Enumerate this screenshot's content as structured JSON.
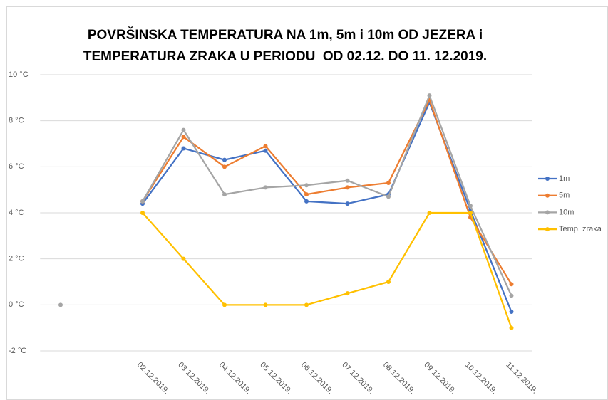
{
  "chart_data": {
    "type": "line",
    "title": [
      "POVRŠINSKA TEMPERATURA NA 1m, 5m i 10m OD JEZERA i",
      "TEMPERATURA ZRAKA U PERIODU  OD 02.12. DO 11. 12.2019."
    ],
    "categories": [
      null,
      null,
      "02.12.2019.",
      "03.12.2019.",
      "04.12.2019.",
      "05.12.2019.",
      "06.12.2019.",
      "07.12.2019.",
      "08.12.2019.",
      "09.12.2019.",
      "10.12.2019.",
      "11.12.2019."
    ],
    "series": [
      {
        "name": "1m",
        "color": "#4472c4",
        "values": [
          null,
          null,
          4.4,
          6.8,
          6.3,
          6.7,
          4.5,
          4.4,
          4.8,
          8.8,
          4.1,
          -0.3
        ]
      },
      {
        "name": "5m",
        "color": "#ed7d31",
        "values": [
          null,
          null,
          4.5,
          7.3,
          6.0,
          6.9,
          4.8,
          5.1,
          5.3,
          8.9,
          3.8,
          0.9
        ]
      },
      {
        "name": "10m",
        "color": "#a5a5a5",
        "values": [
          0,
          null,
          4.5,
          7.6,
          4.8,
          5.1,
          5.2,
          5.4,
          4.7,
          9.1,
          4.3,
          0.4
        ]
      },
      {
        "name": "Temp. zraka",
        "color": "#ffc000",
        "values": [
          null,
          null,
          4,
          2,
          0,
          0,
          0,
          0.5,
          1,
          4,
          4,
          -1
        ]
      }
    ],
    "ylim": [
      -2,
      10
    ],
    "yticks": [
      {
        "value": -2,
        "label": "-2 °C"
      },
      {
        "value": 0,
        "label": "0 °C"
      },
      {
        "value": 2,
        "label": "2 °C"
      },
      {
        "value": 4,
        "label": "4 °C"
      },
      {
        "value": 6,
        "label": "6 °C"
      },
      {
        "value": 8,
        "label": "8 °C"
      },
      {
        "value": 10,
        "label": "10 °C"
      }
    ],
    "grid": true,
    "legend": "right"
  }
}
